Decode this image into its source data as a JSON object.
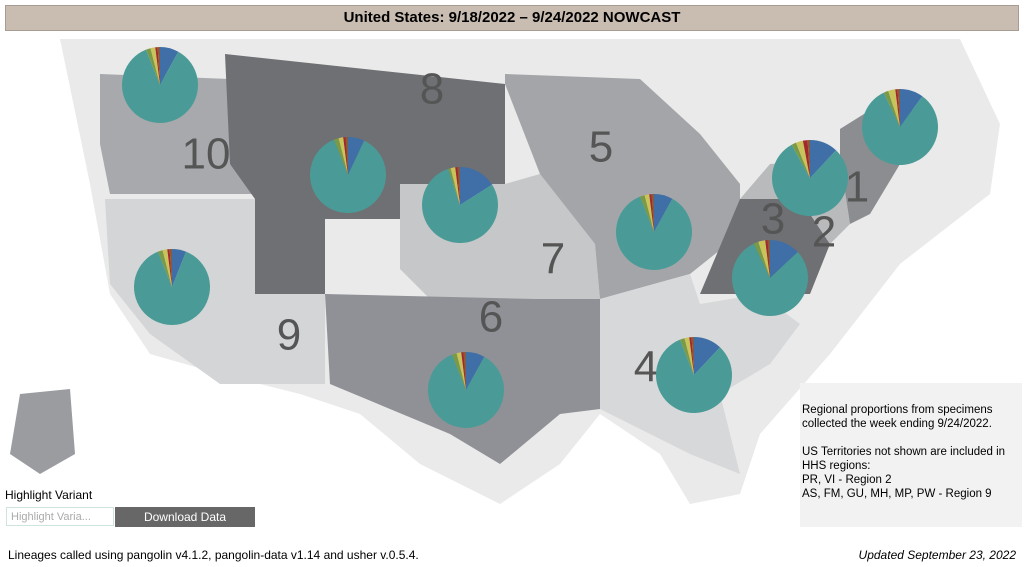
{
  "header": {
    "title": "United States: 9/18/2022 – 9/24/2022 NOWCAST"
  },
  "slice_colors": [
    "#3f6fa6",
    "#4a9b97",
    "#7a9a48",
    "#c9c35c",
    "#a3282b",
    "#8a5a3a"
  ],
  "regions": [
    {
      "label": "1",
      "pie": [
        10,
        83,
        2,
        3,
        1,
        1
      ]
    },
    {
      "label": "2",
      "pie": [
        12,
        80,
        2,
        3,
        2,
        1
      ]
    },
    {
      "label": "3",
      "pie": [
        13,
        80,
        2,
        3,
        1,
        1
      ]
    },
    {
      "label": "4",
      "pie": [
        12,
        82,
        2,
        2,
        1,
        1
      ]
    },
    {
      "label": "5",
      "pie": [
        8,
        86,
        2,
        2,
        1,
        1
      ]
    },
    {
      "label": "6",
      "pie": [
        8,
        86,
        2,
        2,
        1,
        1
      ]
    },
    {
      "label": "7",
      "pie": [
        16,
        79,
        1,
        2,
        1,
        1
      ]
    },
    {
      "label": "8",
      "pie": [
        7,
        87,
        2,
        2,
        1,
        1
      ]
    },
    {
      "label": "9",
      "pie": [
        6,
        88,
        2,
        2,
        1,
        1
      ]
    },
    {
      "label": "10",
      "pie": [
        8,
        86,
        2,
        2,
        1,
        1
      ]
    }
  ],
  "note": {
    "lines": [
      "Regional proportions from specimens",
      "collected the week ending 9/24/2022.",
      "US Territories not shown are included in",
      "HHS regions:",
      "PR, VI - Region 2",
      "AS, FM, GU, MH, MP, PW - Region 9"
    ]
  },
  "controls": {
    "highlight_label": "Highlight Variant",
    "placeholder": "Highlight Varia...",
    "button": "Download Data"
  },
  "footer": {
    "left": "Lineages called using pangolin v4.1.2, pangolin-data v1.14 and usher v.0.5.4.",
    "right": "Updated September 23, 2022"
  }
}
